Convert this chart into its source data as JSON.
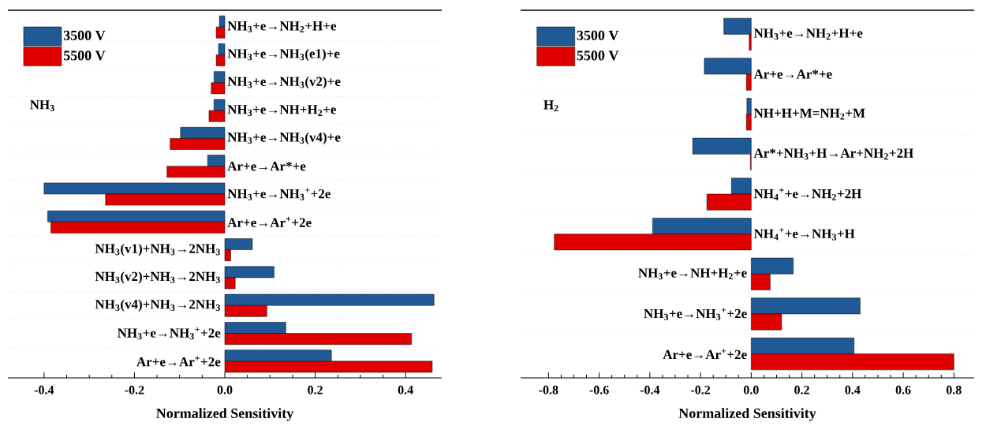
{
  "chart_data": [
    {
      "type": "bar",
      "orientation": "horizontal",
      "xlabel": "Normalized Sensitivity",
      "legend": "top left",
      "grid": "y",
      "annotations": [
        "NH$_{3}$"
      ],
      "categories": [
        "NH$_{3}$+e→NH$_{2}$+H+e",
        "NH$_{3}$+e→NH$_{3}$(e1)+e",
        "NH$_{3}$+e→NH$_{3}$(v2)+e",
        "NH$_{3}$+e→NH+H$_{2}$+e",
        "NH$_{3}$+e→NH$_{3}$(v4)+e",
        "Ar+e→Ar*+e",
        "NH$_{3}$+e→NH$_{3}$$^{+}$+2e",
        "Ar+e→Ar$^{+}$+2e",
        "NH$_{3}$(v1)+NH$_{3}$→2NH$_{3}$",
        "NH$_{3}$(v2)+NH$_{3}$→2NH$_{3}$",
        "NH$_{3}$(v4)+NH$_{3}$→2NH$_{3}$",
        "NH$_{3}$+e→NH$_{3}$$^{+}$+2e",
        "Ar+e→Ar$^{+}$+2e"
      ],
      "series": [
        {
          "name": "3500 V",
          "color": "#1f5a96",
          "values": [
            -0.012,
            -0.014,
            -0.024,
            -0.024,
            -0.098,
            -0.038,
            -0.4,
            -0.392,
            0.061,
            0.109,
            0.463,
            0.135,
            0.236
          ]
        },
        {
          "name": "5500 V",
          "color": "#e00000",
          "values": [
            -0.019,
            -0.019,
            -0.03,
            -0.035,
            -0.121,
            -0.128,
            -0.264,
            -0.385,
            0.013,
            0.023,
            0.093,
            0.413,
            0.459
          ]
        }
      ],
      "xlim": [
        -0.48,
        0.48
      ],
      "xticks": [
        -0.4,
        -0.2,
        {
          "value": 0,
          "label": "0.0"
        },
        0.2,
        0.4
      ]
    },
    {
      "type": "bar",
      "orientation": "horizontal",
      "xlabel": "Normalized Sensitivity",
      "legend": "top left",
      "grid": "y",
      "annotations": [
        "H$_{2}$"
      ],
      "categories": [
        "NH$_{3}$+e→NH$_{2}$+H+e",
        "Ar+e→Ar*+e",
        "NH+H+M=NH$_{2}$+M",
        "Ar*+NH$_{3}$+H→Ar+NH$_{2}$+2H",
        "NH$_{4}$$^{+}$+e→NH$_{2}$+2H",
        "NH$_{4}$$^{+}$+e→NH$_{3}$+H",
        "NH$_{3}$+e→NH+H$_{2}$+e",
        "NH$_{3}$+e→NH$_{3}$$^{+}$+2e",
        "Ar+e→Ar$^{+}$+2e"
      ],
      "series": [
        {
          "name": "3500 V",
          "color": "#1f5a96",
          "values": [
            -0.108,
            -0.185,
            -0.017,
            -0.231,
            -0.078,
            -0.389,
            0.166,
            0.43,
            0.406
          ]
        },
        {
          "name": "5500 V",
          "color": "#e00000",
          "values": [
            -0.008,
            -0.019,
            -0.019,
            -0.003,
            -0.175,
            -0.777,
            0.075,
            0.12,
            0.8
          ]
        }
      ],
      "xlim": [
        -0.91,
        0.88
      ],
      "xticks": [
        -0.8,
        -0.6,
        -0.4,
        -0.2,
        {
          "value": 0,
          "label": "0.0"
        },
        0.2,
        0.4,
        0.6,
        0.8
      ]
    }
  ]
}
